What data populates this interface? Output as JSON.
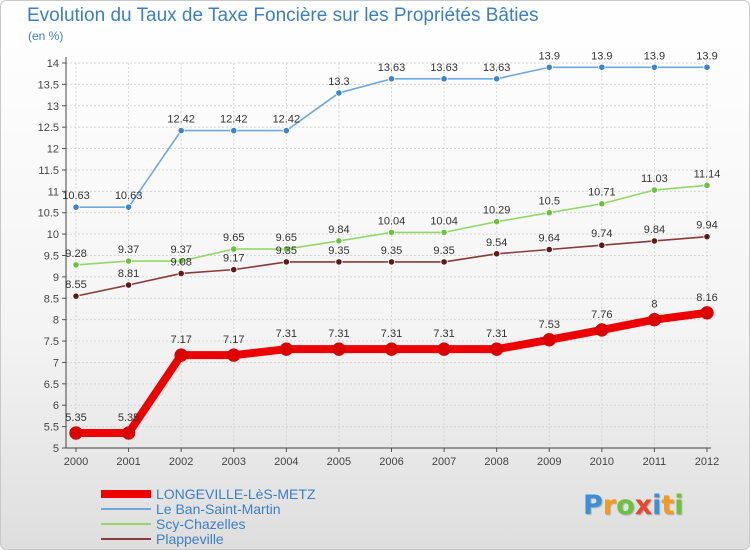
{
  "chart_data": {
    "type": "line",
    "title": "Evolution du Taux de Taxe Foncière sur les Propriétés Bâties",
    "ylabel": "(en %)",
    "xlabel": "",
    "ylim": [
      5,
      14
    ],
    "yticks": [
      "5",
      "5.5",
      "6",
      "6.5",
      "7",
      "7.5",
      "8",
      "8.5",
      "9",
      "9.5",
      "10",
      "10.5",
      "11",
      "11.5",
      "12",
      "12.5",
      "13",
      "13.5",
      "14"
    ],
    "x": [
      "2000",
      "2001",
      "2002",
      "2003",
      "2004",
      "2005",
      "2006",
      "2007",
      "2008",
      "2009",
      "2010",
      "2011",
      "2012"
    ],
    "grid": true,
    "legend_position": "bottom-left",
    "series": [
      {
        "name": "LONGEVILLE-LèS-METZ",
        "color": "#ee0000",
        "point_color": "#dd0000",
        "values": [
          5.35,
          5.35,
          7.17,
          7.17,
          7.31,
          7.31,
          7.31,
          7.31,
          7.31,
          7.53,
          7.76,
          8,
          8.16
        ],
        "labels": [
          "5.35",
          "5.35",
          "7.17",
          "7.17",
          "7.31",
          "7.31",
          "7.31",
          "7.31",
          "7.31",
          "7.53",
          "7.76",
          "8",
          "8.16"
        ]
      },
      {
        "name": "Le Ban-Saint-Martin",
        "color": "#6fa8dc",
        "point_color": "#3d85c6",
        "values": [
          10.63,
          10.63,
          12.42,
          12.42,
          12.42,
          13.3,
          13.63,
          13.63,
          13.63,
          13.9,
          13.9,
          13.9,
          13.9
        ],
        "labels": [
          "10.63",
          "10.63",
          "12.42",
          "12.42",
          "12.42",
          "13.3",
          "13.63",
          "13.63",
          "13.63",
          "13.9",
          "13.9",
          "13.9",
          "13.9"
        ]
      },
      {
        "name": "Scy-Chazelles",
        "color": "#93d66a",
        "point_color": "#6cc13e",
        "values": [
          9.28,
          9.37,
          9.37,
          9.65,
          9.65,
          9.84,
          10.04,
          10.04,
          10.29,
          10.5,
          10.71,
          11.03,
          11.14
        ],
        "labels": [
          "9.28",
          "9.37",
          "9.37",
          "9.65",
          "9.65",
          "9.84",
          "10.04",
          "10.04",
          "10.29",
          "10.5",
          "10.71",
          "11.03",
          "11.14"
        ]
      },
      {
        "name": "Plappeville",
        "color": "#8b3a3a",
        "point_color": "#5c1a1a",
        "values": [
          8.55,
          8.81,
          9.08,
          9.17,
          9.35,
          9.35,
          9.35,
          9.35,
          9.54,
          9.64,
          9.74,
          9.84,
          9.94
        ],
        "labels": [
          "8.55",
          "8.81",
          "9.08",
          "9.17",
          "9.35",
          "9.35",
          "9.35",
          "9.35",
          "9.54",
          "9.64",
          "9.74",
          "9.84",
          "9.94"
        ]
      }
    ]
  },
  "logo": {
    "letters": [
      {
        "ch": "P",
        "color": "#3a8fd8"
      },
      {
        "ch": "r",
        "color": "#f29b1e"
      },
      {
        "ch": "o",
        "color": "#6cc13e"
      },
      {
        "ch": "x",
        "color": "#e8452c"
      },
      {
        "ch": "i",
        "color": "#3a8fd8"
      },
      {
        "ch": "t",
        "color": "#f29b1e"
      },
      {
        "ch": "i",
        "color": "#6cc13e"
      }
    ]
  }
}
